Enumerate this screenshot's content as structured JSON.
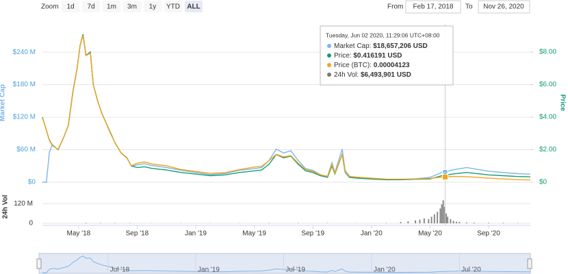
{
  "zoom": {
    "label": "Zoom",
    "buttons": [
      "1d",
      "7d",
      "1m",
      "3m",
      "1y",
      "YTD",
      "ALL"
    ],
    "active": 6
  },
  "range": {
    "from_label": "From",
    "from": "Feb 17, 2018",
    "to_label": "To",
    "to": "Nov 26, 2020"
  },
  "navigator": {
    "xticks": [
      {
        "value": 6,
        "label": "Jul '18"
      },
      {
        "value": 12,
        "label": "Jan '19"
      },
      {
        "value": 18,
        "label": "Jul '19"
      },
      {
        "value": 24,
        "label": "Jan '20"
      },
      {
        "value": 30,
        "label": "Jul '20"
      }
    ]
  },
  "chart_data": [
    {
      "type": "line",
      "ylabel": "Market Cap",
      "y2label": "Price",
      "grid": true,
      "xlim": [
        1.53,
        34.85
      ],
      "xticks": [
        {
          "value": 4,
          "label": "May '18"
        },
        {
          "value": 8,
          "label": "Sep '18"
        },
        {
          "value": 12,
          "label": "Jan '19"
        },
        {
          "value": 16,
          "label": "May '19"
        },
        {
          "value": 20,
          "label": "Sep '19"
        },
        {
          "value": 24,
          "label": "Jan '20"
        },
        {
          "value": 28,
          "label": "May '20"
        },
        {
          "value": 32,
          "label": "Sep '20"
        }
      ],
      "ylim": [
        0,
        292
      ],
      "yticks": [
        {
          "value": 0,
          "label": "$0"
        },
        {
          "value": 60,
          "label": "$60 M"
        },
        {
          "value": 120,
          "label": "$120 M"
        },
        {
          "value": 180,
          "label": "$180 M"
        },
        {
          "value": 240,
          "label": "$240 M"
        }
      ],
      "y2lim": [
        0,
        9.73
      ],
      "y2ticks": [
        {
          "value": 0,
          "label": "$0"
        },
        {
          "value": 2,
          "label": "$2.00"
        },
        {
          "value": 4,
          "label": "$4.00"
        },
        {
          "value": 6,
          "label": "$6.00"
        },
        {
          "value": 8,
          "label": "$8.00"
        }
      ],
      "y3lim": [
        0,
        0.00125
      ],
      "x": [
        1.53,
        1.8,
        2.0,
        2.2,
        2.6,
        3.0,
        3.3,
        3.6,
        3.9,
        4.1,
        4.3,
        4.5,
        4.8,
        5.0,
        5.3,
        5.6,
        5.9,
        6.2,
        6.5,
        6.9,
        7.3,
        7.6,
        8.0,
        8.5,
        9,
        10,
        11,
        12,
        13,
        14,
        15,
        16,
        16.5,
        17,
        17.5,
        18,
        18.5,
        19,
        19.5,
        20,
        20.5,
        21,
        21.3,
        21.5,
        22,
        22.2,
        22.5,
        23,
        24,
        25,
        26,
        27,
        28,
        28.8,
        29.03,
        29.5,
        30,
        30.5,
        31,
        32,
        33,
        34,
        34.85
      ],
      "series": [
        {
          "name": "Market Cap",
          "color": "#7cb5ec",
          "axis": "y",
          "values": [
            0,
            0,
            55,
            69,
            60,
            84,
            105,
            165,
            210,
            252,
            273,
            234,
            240,
            180,
            150,
            126,
            108,
            90,
            72,
            54,
            45,
            30,
            32,
            34,
            31,
            27,
            22,
            18,
            14,
            16,
            22,
            25,
            27,
            40,
            61,
            54,
            58,
            40,
            25,
            22,
            14,
            11,
            36,
            18,
            61,
            22,
            11,
            9,
            7,
            5,
            5,
            6.5,
            9,
            18,
            18.66,
            22.5,
            24.8,
            27,
            24.8,
            20.3,
            18,
            15.8,
            14.9
          ]
        },
        {
          "name": "Price",
          "color": "#139c78",
          "axis": "y2",
          "values": [
            4.0,
            3.2,
            2.6,
            2.3,
            2.0,
            2.8,
            3.5,
            5.5,
            7.0,
            8.4,
            9.1,
            7.8,
            8.0,
            6.0,
            5.0,
            4.2,
            3.6,
            3.0,
            2.4,
            1.8,
            1.5,
            1.0,
            0.9,
            0.95,
            0.85,
            0.75,
            0.6,
            0.5,
            0.4,
            0.45,
            0.6,
            0.7,
            0.75,
            1.1,
            1.7,
            1.5,
            1.6,
            1.1,
            0.7,
            0.6,
            0.4,
            0.3,
            1.0,
            0.5,
            1.7,
            0.6,
            0.3,
            0.25,
            0.2,
            0.15,
            0.15,
            0.18,
            0.2,
            0.4,
            0.416191,
            0.5,
            0.55,
            0.6,
            0.55,
            0.45,
            0.4,
            0.35,
            0.33
          ]
        },
        {
          "name": "Price (BTC)",
          "color": "#f5a31a",
          "axis": "y3",
          "values": [
            0.00051,
            0.00041,
            0.00033,
            0.00029,
            0.00026,
            0.00036,
            0.00045,
            0.0007,
            0.0009,
            0.00108,
            0.00116,
            0.001,
            0.00102,
            0.00077,
            0.00064,
            0.00054,
            0.00046,
            0.00038,
            0.00031,
            0.00023,
            0.00019,
            0.00013,
            0.00015,
            0.00016,
            0.000145,
            0.00013,
            0.0001,
            8.5e-05,
            7e-05,
            7.5e-05,
            0.0001,
            0.00012,
            0.000125,
            0.00017,
            0.00022,
            0.0002,
            0.00021,
            0.00015,
            0.0001,
            8.5e-05,
            6e-05,
            4.5e-05,
            0.00014,
            7e-05,
            0.00022,
            8e-05,
            4.5e-05,
            4e-05,
            3.2e-05,
            2.5e-05,
            2.4e-05,
            2.6e-05,
            3e-05,
            4e-05,
            4.123e-05,
            4.6e-05,
            4.5e-05,
            4.4e-05,
            4e-05,
            3.2e-05,
            2.6e-05,
            2e-05,
            1.8e-05
          ]
        }
      ],
      "tooltip": {
        "title": "Tuesday, Jun 02 2020, 11:29:06 UTC+08:00",
        "items": [
          {
            "label": "Market Cap:",
            "value": "$18,657,206 USD"
          },
          {
            "label": "Price:",
            "value": "$0.416191 USD"
          },
          {
            "label": "Price (BTC):",
            "value": "0.00004123"
          },
          {
            "label": "24h Vol:",
            "value": "$6,493,901 USD"
          }
        ]
      }
    },
    {
      "type": "bar",
      "ylabel": "24h Vol",
      "grid": true,
      "xlim": [
        1.53,
        34.85
      ],
      "ylim": [
        0,
        200
      ],
      "yticks": [
        0,
        {
          "value": 120,
          "label": "120 M"
        }
      ],
      "x": [
        4.5,
        5.5,
        6.5,
        7.5,
        9,
        11,
        13,
        15,
        17,
        19,
        21,
        23,
        25,
        26,
        26.5,
        27,
        27.3,
        27.6,
        27.9,
        28.1,
        28.3,
        28.5,
        28.7,
        28.8,
        28.9,
        29.0,
        29.1,
        29.2,
        29.4,
        29.6,
        29.8,
        30,
        30.5,
        31,
        32,
        33,
        34
      ],
      "series": [
        {
          "name": "24h Vol",
          "color": "#8a8a8a",
          "values": [
            3,
            2,
            2,
            1.5,
            1,
            1,
            1,
            1,
            2,
            2,
            2,
            1,
            2,
            8,
            12,
            18,
            22,
            30,
            25,
            40,
            55,
            70,
            90,
            115,
            140,
            100,
            60,
            40,
            25,
            15,
            10,
            8,
            5,
            4,
            3,
            3,
            2
          ]
        }
      ]
    }
  ]
}
